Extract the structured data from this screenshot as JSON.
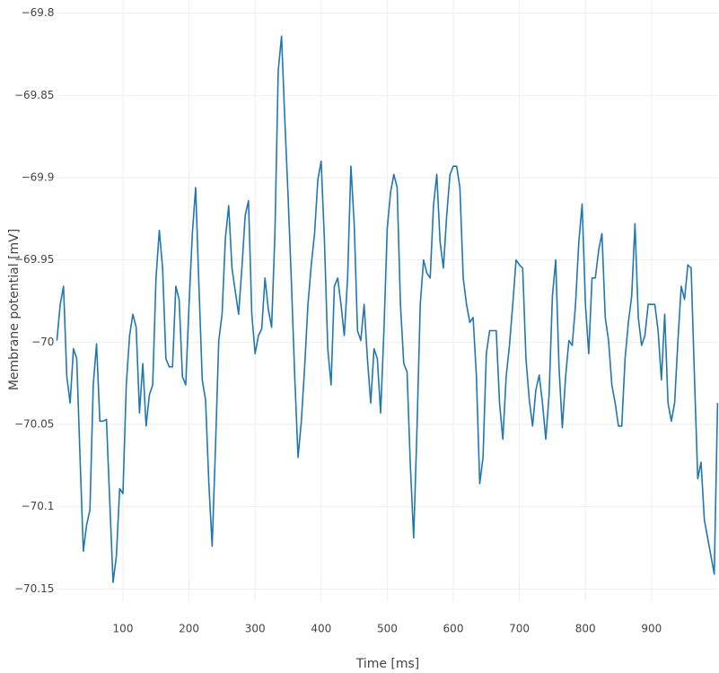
{
  "chart_data": {
    "type": "line",
    "x_label": "Time [ms]",
    "y_label": "Membrane potential [mV]",
    "xlim": [
      0,
      1000
    ],
    "ylim": [
      -70.158,
      -69.792
    ],
    "xticks": [
      100,
      200,
      300,
      400,
      500,
      600,
      700,
      800,
      900
    ],
    "yticks": [
      {
        "value": -69.8,
        "label": "−69.8"
      },
      {
        "value": -69.85,
        "label": "−69.85"
      },
      {
        "value": -69.9,
        "label": "−69.9"
      },
      {
        "value": -69.95,
        "label": "−69.95"
      },
      {
        "value": -70,
        "label": "−70"
      },
      {
        "value": -70.05,
        "label": "−70.05"
      },
      {
        "value": -70.1,
        "label": "−70.1"
      },
      {
        "value": -70.15,
        "label": "−70.15"
      }
    ],
    "grid": true,
    "x": [
      0,
      5,
      10,
      15,
      20,
      25,
      30,
      35,
      40,
      45,
      50,
      55,
      60,
      65,
      70,
      75,
      80,
      85,
      90,
      95,
      100,
      105,
      110,
      115,
      120,
      125,
      130,
      135,
      140,
      145,
      150,
      155,
      160,
      165,
      170,
      175,
      180,
      185,
      190,
      195,
      200,
      205,
      210,
      215,
      220,
      225,
      230,
      235,
      240,
      245,
      250,
      255,
      260,
      265,
      270,
      275,
      280,
      285,
      290,
      295,
      300,
      305,
      310,
      315,
      320,
      325,
      330,
      335,
      340,
      345,
      350,
      355,
      360,
      365,
      370,
      375,
      380,
      385,
      390,
      395,
      400,
      405,
      410,
      415,
      420,
      425,
      430,
      435,
      440,
      445,
      450,
      455,
      460,
      465,
      470,
      475,
      480,
      485,
      490,
      495,
      500,
      505,
      510,
      515,
      520,
      525,
      530,
      535,
      540,
      545,
      550,
      555,
      560,
      565,
      570,
      575,
      580,
      585,
      590,
      595,
      600,
      605,
      610,
      615,
      620,
      625,
      630,
      635,
      640,
      645,
      650,
      655,
      660,
      665,
      670,
      675,
      680,
      685,
      690,
      695,
      700,
      705,
      710,
      715,
      720,
      725,
      730,
      735,
      740,
      745,
      750,
      755,
      760,
      765,
      770,
      775,
      780,
      785,
      790,
      795,
      800,
      805,
      810,
      815,
      820,
      825,
      830,
      835,
      840,
      845,
      850,
      855,
      860,
      865,
      870,
      875,
      880,
      885,
      890,
      895,
      900,
      905,
      910,
      915,
      920,
      925,
      930,
      935,
      940,
      945,
      950,
      955,
      960,
      965,
      970,
      975,
      980,
      985,
      990,
      995,
      1000
    ],
    "series": [
      {
        "color": "#1f77b4",
        "values": [
          -69.999,
          -69.977,
          -69.966,
          -70.021,
          -70.037,
          -70.004,
          -70.01,
          -70.07,
          -70.127,
          -70.111,
          -70.102,
          -70.026,
          -70.001,
          -70.048,
          -70.048,
          -70.047,
          -70.097,
          -70.146,
          -70.13,
          -70.089,
          -70.092,
          -70.026,
          -69.996,
          -69.983,
          -69.991,
          -70.043,
          -70.013,
          -70.051,
          -70.032,
          -70.026,
          -69.961,
          -69.932,
          -69.955,
          -70.01,
          -70.015,
          -70.015,
          -69.966,
          -69.974,
          -70.021,
          -70.026,
          -69.977,
          -69.934,
          -69.906,
          -69.966,
          -70.023,
          -70.035,
          -70.086,
          -70.124,
          -70.064,
          -69.999,
          -69.983,
          -69.937,
          -69.917,
          -69.955,
          -69.969,
          -69.983,
          -69.955,
          -69.923,
          -69.914,
          -69.983,
          -70.007,
          -69.996,
          -69.992,
          -69.961,
          -69.98,
          -69.991,
          -69.934,
          -69.835,
          -69.814,
          -69.865,
          -69.912,
          -69.964,
          -70.021,
          -70.07,
          -70.048,
          -70.015,
          -69.977,
          -69.953,
          -69.934,
          -69.901,
          -69.89,
          -69.939,
          -70.004,
          -70.026,
          -69.966,
          -69.961,
          -69.977,
          -69.996,
          -69.961,
          -69.893,
          -69.928,
          -69.993,
          -69.999,
          -69.977,
          -70.01,
          -70.037,
          -70.004,
          -70.01,
          -70.043,
          -69.993,
          -69.931,
          -69.909,
          -69.898,
          -69.906,
          -69.977,
          -70.013,
          -70.018,
          -70.075,
          -70.119,
          -70.053,
          -69.977,
          -69.95,
          -69.958,
          -69.961,
          -69.917,
          -69.898,
          -69.939,
          -69.955,
          -69.923,
          -69.898,
          -69.893,
          -69.893,
          -69.906,
          -69.961,
          -69.977,
          -69.988,
          -69.985,
          -70.021,
          -70.086,
          -70.07,
          -70.007,
          -69.993,
          -69.993,
          -69.993,
          -70.037,
          -70.059,
          -70.021,
          -70.002,
          -69.977,
          -69.95,
          -69.953,
          -69.955,
          -70.01,
          -70.035,
          -70.051,
          -70.029,
          -70.02,
          -70.037,
          -70.059,
          -70.032,
          -69.972,
          -69.95,
          -70.015,
          -70.052,
          -70.021,
          -69.999,
          -70.002,
          -69.977,
          -69.939,
          -69.916,
          -69.977,
          -70.007,
          -69.961,
          -69.961,
          -69.944,
          -69.934,
          -69.985,
          -69.999,
          -70.026,
          -70.037,
          -70.051,
          -70.051,
          -70.01,
          -69.988,
          -69.972,
          -69.928,
          -69.985,
          -70.002,
          -69.996,
          -69.977,
          -69.977,
          -69.977,
          -69.993,
          -70.023,
          -69.983,
          -70.037,
          -70.048,
          -70.037,
          -69.999,
          -69.966,
          -69.974,
          -69.953,
          -69.955,
          -70.021,
          -70.083,
          -70.073,
          -70.108,
          -70.119,
          -70.13,
          -70.141,
          -70.037
        ]
      }
    ]
  }
}
